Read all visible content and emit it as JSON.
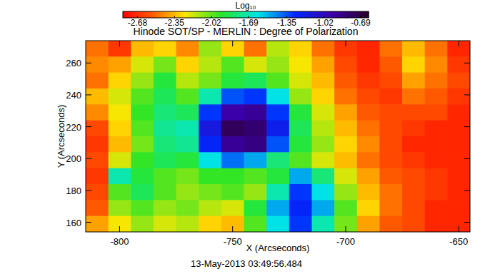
{
  "chart_data": {
    "type": "heatmap",
    "title": "Hinode SOT/SP - MERLIN : Degree of Polarization",
    "x_label": "X (Arcseconds)",
    "y_label": "Y (Arcseconds)",
    "annotation": "13-May-2013 03:49:56.484",
    "colorbar_label": "Log₁₀",
    "colorbar_range": [
      -2.81,
      -0.62
    ],
    "colorbar_ticks": [
      -2.68,
      -2.35,
      -2.02,
      -1.69,
      -1.35,
      -1.02,
      -0.69
    ],
    "xlim": [
      -815,
      -645
    ],
    "ylim": [
      154,
      274
    ],
    "xticks": [
      -800,
      -750,
      -700,
      -650
    ],
    "yticks": [
      160,
      180,
      200,
      220,
      240,
      260
    ],
    "x": [
      -810,
      -800,
      -790,
      -780,
      -770,
      -760,
      -750,
      -740,
      -730,
      -720,
      -710,
      -700,
      -690,
      -680,
      -670,
      -660,
      -650
    ],
    "y": [
      269,
      259,
      249,
      239,
      229,
      219,
      209,
      199,
      189,
      179,
      169,
      159
    ],
    "z": [
      [
        -2.5,
        -2.65,
        -2.35,
        -2.3,
        -2.45,
        -2.1,
        -2.3,
        -2.5,
        -2.15,
        -2.3,
        -2.5,
        -2.65,
        -2.7,
        -2.5,
        -2.35,
        -2.5,
        -2.7
      ],
      [
        -2.45,
        -2.4,
        -2.2,
        -2.05,
        -2.3,
        -2.15,
        -2.0,
        -2.2,
        -2.1,
        -2.25,
        -2.4,
        -2.6,
        -2.7,
        -2.55,
        -2.3,
        -2.45,
        -2.65
      ],
      [
        -2.5,
        -2.3,
        -2.1,
        -1.9,
        -2.15,
        -2.05,
        -1.9,
        -1.85,
        -2.0,
        -2.2,
        -2.35,
        -2.55,
        -2.65,
        -2.6,
        -2.4,
        -2.5,
        -2.6
      ],
      [
        -2.35,
        -2.2,
        -2.0,
        -1.85,
        -2.0,
        -1.7,
        -1.35,
        -1.3,
        -1.6,
        -2.1,
        -2.3,
        -2.5,
        -2.6,
        -2.65,
        -2.5,
        -2.55,
        -2.65
      ],
      [
        -2.45,
        -2.25,
        -1.95,
        -1.8,
        -1.85,
        -1.3,
        -0.95,
        -0.9,
        -1.3,
        -1.9,
        -2.2,
        -2.4,
        -2.55,
        -2.6,
        -2.6,
        -2.6,
        -2.7
      ],
      [
        -2.6,
        -2.3,
        -2.0,
        -1.75,
        -1.7,
        -1.15,
        -0.75,
        -0.8,
        -1.2,
        -1.85,
        -2.15,
        -2.35,
        -2.5,
        -2.6,
        -2.65,
        -2.7,
        -2.7
      ],
      [
        -2.65,
        -2.35,
        -2.05,
        -1.8,
        -1.75,
        -1.25,
        -0.9,
        -0.85,
        -1.35,
        -1.9,
        -2.1,
        -2.3,
        -2.45,
        -2.6,
        -2.7,
        -2.7,
        -2.7
      ],
      [
        -2.6,
        -2.2,
        -1.95,
        -1.85,
        -1.9,
        -1.6,
        -1.4,
        -1.5,
        -1.8,
        -2.0,
        -2.2,
        -2.35,
        -2.5,
        -2.6,
        -2.65,
        -2.7,
        -2.7
      ],
      [
        -2.65,
        -1.7,
        -1.9,
        -2.0,
        -2.05,
        -1.95,
        -1.95,
        -2.0,
        -1.9,
        -1.5,
        -1.8,
        -2.2,
        -2.4,
        -2.55,
        -2.6,
        -2.65,
        -2.7
      ],
      [
        -2.6,
        -2.0,
        -1.85,
        -2.0,
        -2.1,
        -2.05,
        -2.0,
        -2.1,
        -1.7,
        -1.3,
        -1.6,
        -2.1,
        -2.35,
        -2.5,
        -2.6,
        -2.65,
        -2.7
      ],
      [
        -2.55,
        -2.1,
        -2.0,
        -2.1,
        -2.05,
        -2.15,
        -2.2,
        -1.9,
        -1.5,
        -1.25,
        -1.5,
        -2.0,
        -2.3,
        -2.5,
        -2.6,
        -2.7,
        -2.7
      ],
      [
        -2.4,
        -2.25,
        -2.1,
        -2.2,
        -2.15,
        -2.3,
        -2.35,
        -2.0,
        -1.6,
        -1.3,
        -1.7,
        -2.05,
        -2.4,
        -2.55,
        -2.6,
        -2.7,
        -2.7
      ]
    ]
  }
}
